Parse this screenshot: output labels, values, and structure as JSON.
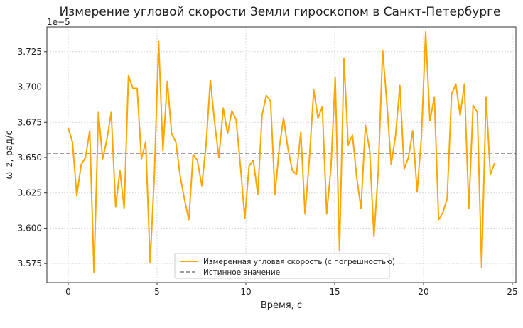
{
  "chart_data": {
    "type": "line",
    "title": "Измерение угловой скорости Земли гироскопом в Санкт-Петербурге",
    "xlabel": "Время, с",
    "ylabel": "ω_z, рад/с",
    "y_offset_label": "1e−5",
    "xlim": [
      -1.2,
      25.2
    ],
    "ylim": [
      3.5615,
      3.7425
    ],
    "x_ticks": [
      0,
      5,
      10,
      15,
      20,
      25
    ],
    "y_ticks": [
      3.575,
      3.6,
      3.625,
      3.65,
      3.675,
      3.7,
      3.725
    ],
    "y_tick_labels": [
      "3.575",
      "3.600",
      "3.625",
      "3.650",
      "3.675",
      "3.700",
      "3.725"
    ],
    "x_tick_labels": [
      "0",
      "5",
      "10",
      "15",
      "20",
      "25"
    ],
    "grid": true,
    "legend_position": "lower-center",
    "series": [
      {
        "name": "Измеренная угловая скорость (с погрешностью)",
        "style": "solid",
        "color": "#FFA500",
        "x": [
          0.0,
          0.24,
          0.48,
          0.73,
          0.97,
          1.21,
          1.45,
          1.7,
          1.94,
          2.18,
          2.42,
          2.67,
          2.91,
          3.15,
          3.39,
          3.64,
          3.88,
          4.12,
          4.36,
          4.61,
          4.85,
          5.09,
          5.33,
          5.58,
          5.82,
          6.06,
          6.3,
          6.55,
          6.79,
          7.03,
          7.27,
          7.52,
          7.76,
          8.0,
          8.24,
          8.48,
          8.73,
          8.97,
          9.21,
          9.45,
          9.7,
          9.94,
          10.18,
          10.42,
          10.67,
          10.91,
          11.15,
          11.39,
          11.64,
          11.88,
          12.12,
          12.36,
          12.61,
          12.85,
          13.09,
          13.33,
          13.58,
          13.82,
          14.06,
          14.3,
          14.55,
          14.79,
          15.03,
          15.27,
          15.52,
          15.76,
          16.0,
          16.24,
          16.48,
          16.73,
          16.97,
          17.21,
          17.45,
          17.7,
          17.94,
          18.18,
          18.42,
          18.67,
          18.91,
          19.15,
          19.39,
          19.64,
          19.88,
          20.12,
          20.36,
          20.61,
          20.85,
          21.09,
          21.33,
          21.58,
          21.82,
          22.06,
          22.3,
          22.55,
          22.79,
          23.03,
          23.27,
          23.52,
          23.76,
          24.0
        ],
        "y": [
          3.671,
          3.661,
          3.623,
          3.645,
          3.65,
          3.669,
          3.569,
          3.682,
          3.649,
          3.663,
          3.682,
          3.615,
          3.641,
          3.614,
          3.708,
          3.699,
          3.699,
          3.649,
          3.661,
          3.576,
          3.638,
          3.732,
          3.655,
          3.704,
          3.667,
          3.661,
          3.637,
          3.62,
          3.606,
          3.652,
          3.648,
          3.63,
          3.659,
          3.705,
          3.675,
          3.65,
          3.685,
          3.667,
          3.683,
          3.677,
          3.643,
          3.607,
          3.644,
          3.648,
          3.624,
          3.68,
          3.694,
          3.69,
          3.624,
          3.657,
          3.678,
          3.657,
          3.641,
          3.638,
          3.668,
          3.61,
          3.65,
          3.698,
          3.678,
          3.686,
          3.61,
          3.643,
          3.707,
          3.584,
          3.72,
          3.659,
          3.666,
          3.636,
          3.614,
          3.673,
          3.655,
          3.594,
          3.64,
          3.726,
          3.688,
          3.645,
          3.665,
          3.701,
          3.642,
          3.65,
          3.669,
          3.626,
          3.664,
          3.739,
          3.676,
          3.693,
          3.606,
          3.611,
          3.621,
          3.695,
          3.702,
          3.68,
          3.702,
          3.614,
          3.687,
          3.682,
          3.572,
          3.693,
          3.638,
          3.646
        ]
      },
      {
        "name": "Истинное значение",
        "style": "dashed",
        "color": "#7f7f7f",
        "y_constant": 3.653
      }
    ]
  }
}
